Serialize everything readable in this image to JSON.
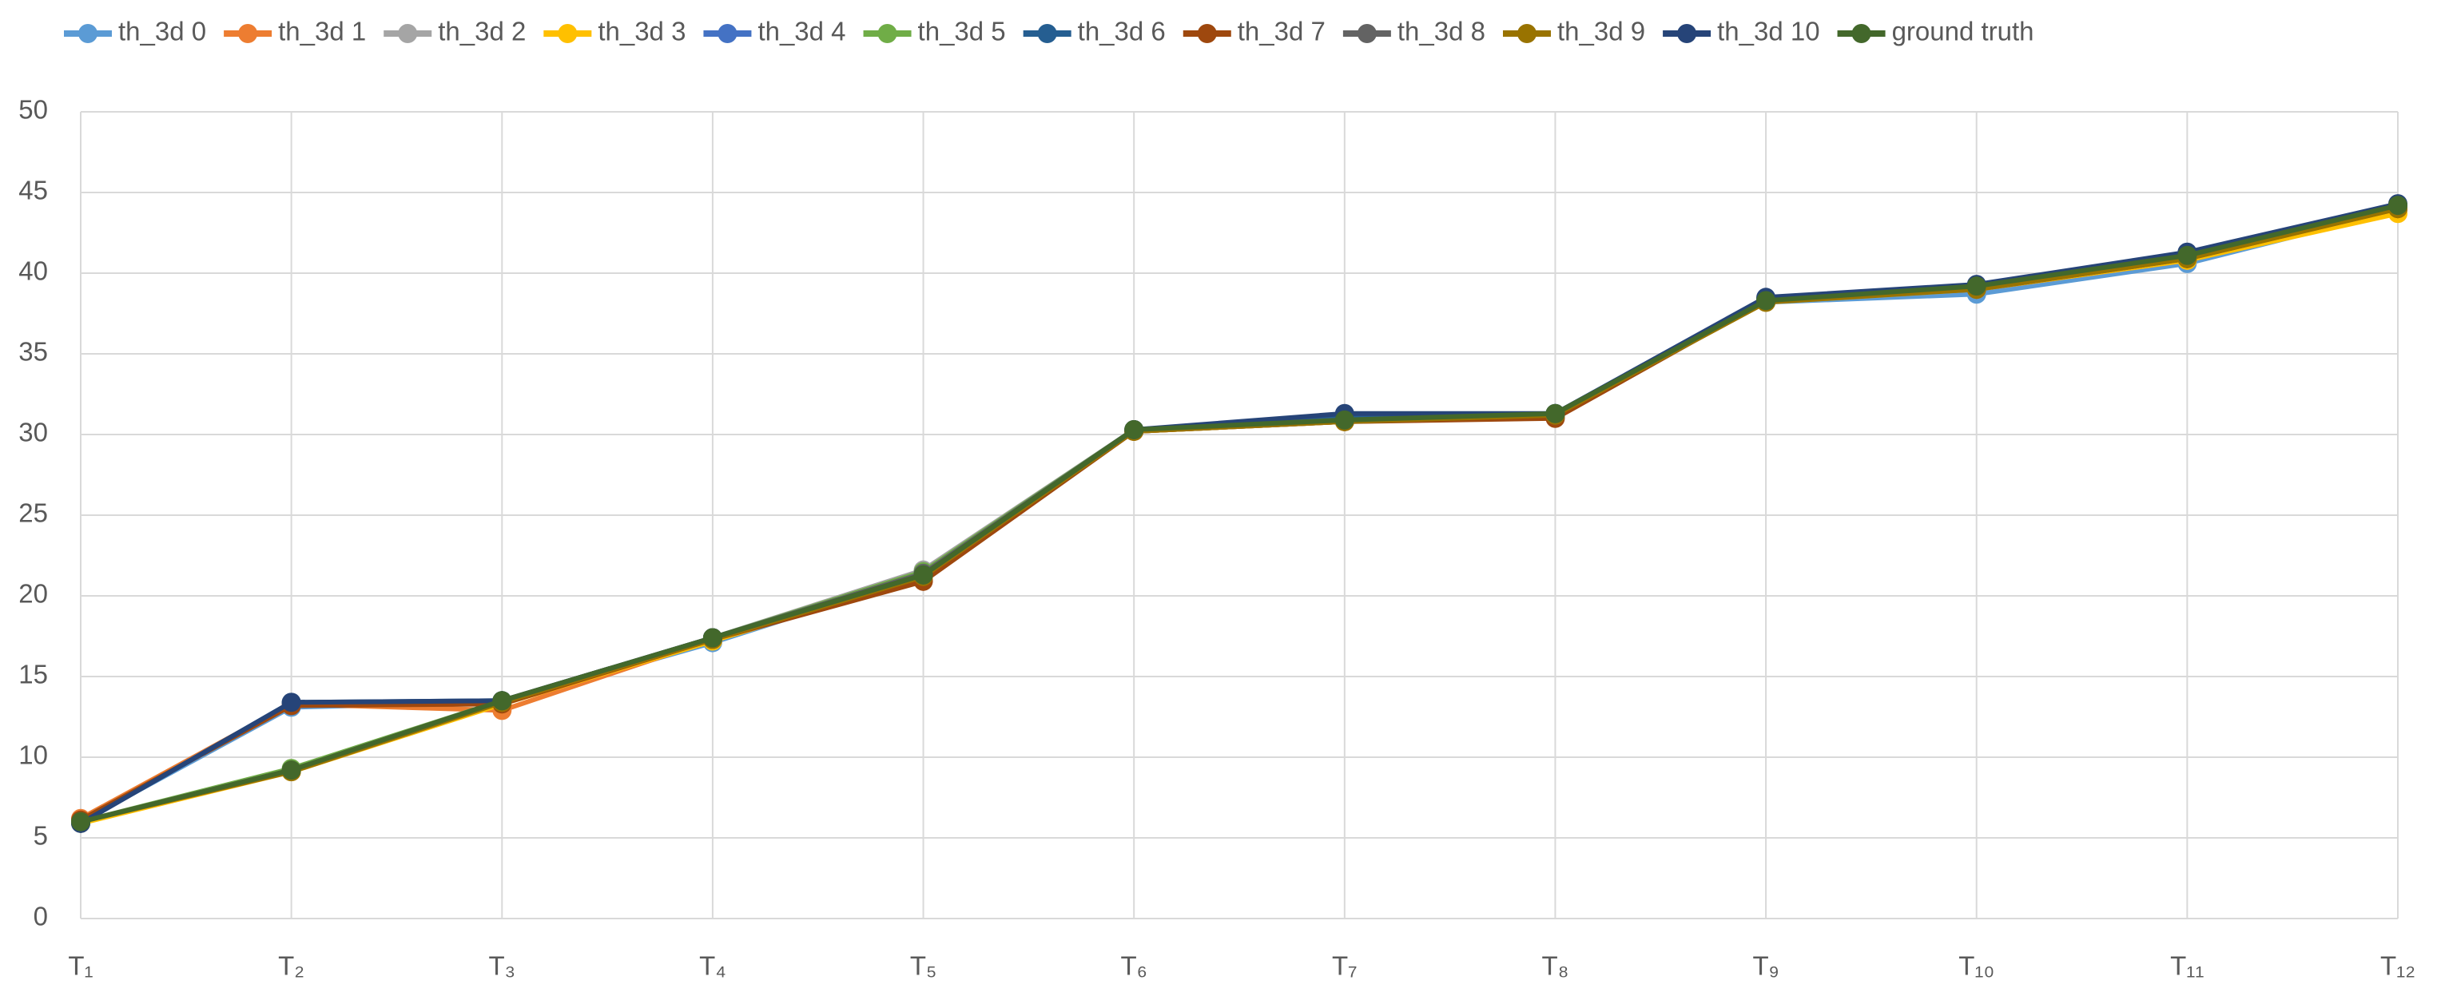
{
  "chart_data": {
    "type": "line",
    "categories": [
      "T₁",
      "T₂",
      "T₃",
      "T₄",
      "T₅",
      "T₆",
      "T₇",
      "T₈",
      "T₉",
      "T₁₀",
      "T₁₁",
      "T₁₂"
    ],
    "series": [
      {
        "name": "th_3d 0",
        "color": "#5b9bd5",
        "values": [
          6.0,
          13.1,
          13.4,
          17.1,
          21.3,
          30.2,
          30.8,
          31.2,
          38.2,
          38.7,
          40.6,
          43.9
        ]
      },
      {
        "name": "th_3d 1",
        "color": "#ed7d31",
        "values": [
          6.2,
          13.3,
          12.9,
          17.3,
          21.0,
          30.2,
          30.8,
          31.1,
          38.3,
          39.0,
          40.8,
          44.0
        ]
      },
      {
        "name": "th_3d 2",
        "color": "#a5a5a5",
        "values": [
          6.0,
          9.2,
          13.5,
          17.4,
          21.6,
          30.3,
          30.9,
          31.2,
          38.2,
          39.1,
          40.9,
          44.1
        ]
      },
      {
        "name": "th_3d 3",
        "color": "#ffc000",
        "values": [
          5.9,
          9.1,
          13.3,
          17.2,
          21.2,
          30.2,
          30.8,
          31.2,
          38.2,
          39.0,
          40.8,
          43.7
        ]
      },
      {
        "name": "th_3d 4",
        "color": "#4472c4",
        "values": [
          6.0,
          13.3,
          13.5,
          17.3,
          21.3,
          30.3,
          31.0,
          31.2,
          38.4,
          39.2,
          41.1,
          44.2
        ]
      },
      {
        "name": "th_3d 5",
        "color": "#70ad47",
        "values": [
          6.0,
          9.3,
          13.5,
          17.4,
          21.5,
          30.3,
          30.9,
          31.2,
          38.3,
          39.1,
          40.9,
          44.1
        ]
      },
      {
        "name": "th_3d 6",
        "color": "#255e91",
        "values": [
          5.9,
          13.4,
          13.5,
          17.4,
          21.3,
          30.3,
          31.1,
          31.3,
          38.4,
          39.2,
          41.2,
          44.2
        ]
      },
      {
        "name": "th_3d 7",
        "color": "#9e480e",
        "values": [
          6.1,
          13.2,
          13.3,
          17.3,
          20.9,
          30.2,
          30.8,
          31.0,
          38.3,
          39.0,
          40.9,
          44.0
        ]
      },
      {
        "name": "th_3d 8",
        "color": "#636363",
        "values": [
          6.0,
          9.2,
          13.5,
          17.4,
          21.4,
          30.3,
          30.9,
          31.2,
          38.3,
          39.1,
          41.0,
          44.1
        ]
      },
      {
        "name": "th_3d 9",
        "color": "#997300",
        "values": [
          6.0,
          9.1,
          13.4,
          17.3,
          21.2,
          30.2,
          30.8,
          31.2,
          38.2,
          39.0,
          40.9,
          44.0
        ]
      },
      {
        "name": "th_3d 10",
        "color": "#264478",
        "values": [
          5.9,
          13.4,
          13.5,
          17.4,
          21.3,
          30.3,
          31.3,
          31.3,
          38.5,
          39.3,
          41.3,
          44.3
        ]
      },
      {
        "name": "ground truth",
        "color": "#43682b",
        "values": [
          6.0,
          9.2,
          13.5,
          17.4,
          21.3,
          30.3,
          30.9,
          31.3,
          38.3,
          39.2,
          41.1,
          44.2
        ]
      }
    ],
    "ylim": [
      0,
      50
    ],
    "yticks": [
      0,
      5,
      10,
      15,
      20,
      25,
      30,
      35,
      40,
      45,
      50
    ],
    "grid": true,
    "legend": "top"
  }
}
